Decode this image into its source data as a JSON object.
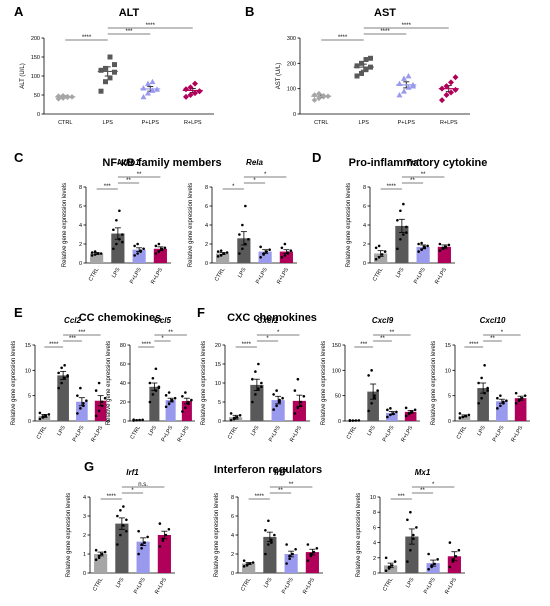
{
  "figure": {
    "group_colors": [
      "#a6a6a6",
      "#595959",
      "#9999ee",
      "#b0005a"
    ],
    "groups": [
      "CTRL",
      "LPS",
      "P+LPS",
      "R+LPS"
    ]
  },
  "headings": {
    "C": "NF-κB family members",
    "D": "Pro-inflammatory cytokine",
    "E": "CC chemokines",
    "F": "CXC chemokines",
    "G": "Interferon regulators"
  },
  "chart_data": [
    {
      "id": "A",
      "type": "scatter",
      "title": "ALT",
      "italic": false,
      "ylabel": "ALT (U/L)",
      "ylim": [
        0,
        200
      ],
      "yticks": [
        0,
        50,
        100,
        150,
        200
      ],
      "categories": [
        "CTRL",
        "LPS",
        "P+LPS",
        "R+LPS"
      ],
      "means": [
        45,
        112,
        66,
        62
      ],
      "sems": [
        3,
        12,
        6,
        5
      ],
      "points": [
        [
          40,
          42,
          44,
          45,
          47,
          48,
          46
        ],
        [
          60,
          85,
          95,
          110,
          115,
          120,
          150,
          130
        ],
        [
          45,
          55,
          62,
          65,
          68,
          80,
          85
        ],
        [
          45,
          50,
          55,
          60,
          65,
          70,
          80,
          60
        ]
      ],
      "sig": [
        {
          "from": 0,
          "to": 1,
          "label": "****"
        },
        {
          "from": 1,
          "to": 2,
          "label": "***"
        },
        {
          "from": 1,
          "to": 3,
          "label": "****"
        }
      ]
    },
    {
      "id": "B",
      "type": "scatter",
      "title": "AST",
      "italic": false,
      "ylabel": "AST (U/L)",
      "ylim": [
        0,
        300
      ],
      "yticks": [
        0,
        100,
        200,
        300
      ],
      "categories": [
        "CTRL",
        "LPS",
        "P+LPS",
        "R+LPS"
      ],
      "means": [
        70,
        185,
        115,
        100
      ],
      "sems": [
        5,
        12,
        12,
        12
      ],
      "points": [
        [
          55,
          62,
          68,
          70,
          75,
          80,
          72
        ],
        [
          150,
          160,
          175,
          185,
          190,
          200,
          215,
          220
        ],
        [
          75,
          90,
          105,
          115,
          120,
          140,
          150,
          110
        ],
        [
          55,
          75,
          85,
          95,
          100,
          110,
          125,
          145
        ]
      ],
      "sig": [
        {
          "from": 0,
          "to": 1,
          "label": "****"
        },
        {
          "from": 1,
          "to": 2,
          "label": "****"
        },
        {
          "from": 1,
          "to": 3,
          "label": "****"
        }
      ]
    },
    {
      "id": "Nfkb1",
      "type": "bar",
      "title": "Nfkb1",
      "italic": true,
      "ylabel": "Relative gene expression levels",
      "ylim": [
        0,
        8
      ],
      "yticks": [
        0,
        2,
        4,
        6,
        8
      ],
      "categories": [
        "CTRL",
        "LPS",
        "P+LPS",
        "R+LPS"
      ],
      "means": [
        1.0,
        3.1,
        1.4,
        1.5
      ],
      "sems": [
        0.1,
        0.6,
        0.2,
        0.2
      ],
      "points": [
        [
          0.8,
          0.9,
          1.0,
          1.0,
          1.1,
          1.2
        ],
        [
          1.5,
          2.0,
          2.5,
          3.0,
          3.5,
          4.5,
          5.5,
          2.2
        ],
        [
          0.8,
          1.0,
          1.2,
          1.5,
          1.8,
          2.0,
          1.3
        ],
        [
          1.0,
          1.2,
          1.4,
          1.6,
          1.8,
          2.0,
          1.5
        ]
      ],
      "sig": [
        {
          "from": 0,
          "to": 1,
          "label": "***"
        },
        {
          "from": 1,
          "to": 2,
          "label": "**"
        },
        {
          "from": 1,
          "to": 3,
          "label": "**"
        }
      ]
    },
    {
      "id": "Rela",
      "type": "bar",
      "title": "Rela",
      "italic": true,
      "ylabel": "Relative gene expression levels",
      "ylim": [
        0,
        8
      ],
      "yticks": [
        0,
        2,
        4,
        6,
        8
      ],
      "categories": [
        "CTRL",
        "LPS",
        "P+LPS",
        "R+LPS"
      ],
      "means": [
        1.0,
        2.6,
        1.2,
        1.2
      ],
      "sems": [
        0.1,
        0.7,
        0.2,
        0.2
      ],
      "points": [
        [
          0.7,
          0.8,
          1.0,
          1.1,
          1.2,
          1.3
        ],
        [
          1.0,
          1.5,
          2.0,
          2.5,
          3.0,
          4.0,
          6.0
        ],
        [
          0.6,
          0.9,
          1.2,
          1.4,
          1.7,
          1.0
        ],
        [
          0.6,
          0.8,
          1.0,
          1.3,
          1.6,
          2.0,
          1.1
        ]
      ],
      "sig": [
        {
          "from": 0,
          "to": 1,
          "label": "*"
        },
        {
          "from": 1,
          "to": 2,
          "label": "*"
        },
        {
          "from": 1,
          "to": 3,
          "label": "*"
        }
      ]
    },
    {
      "id": "Tnf",
      "type": "bar",
      "title": "Tnf",
      "italic": true,
      "ylabel": "Relative gene expression levels",
      "ylim": [
        0,
        8
      ],
      "yticks": [
        0,
        2,
        4,
        6,
        8
      ],
      "categories": [
        "CTRL",
        "LPS",
        "P+LPS",
        "R+LPS"
      ],
      "means": [
        1.0,
        3.9,
        1.7,
        1.7
      ],
      "sems": [
        0.3,
        0.7,
        0.2,
        0.2
      ],
      "points": [
        [
          0.4,
          0.6,
          0.9,
          1.2,
          1.6,
          1.8
        ],
        [
          1.5,
          2.5,
          3.0,
          3.8,
          4.5,
          5.5,
          6.2,
          3.2
        ],
        [
          1.2,
          1.4,
          1.6,
          1.8,
          2.0,
          2.1,
          1.7
        ],
        [
          1.3,
          1.5,
          1.7,
          1.9,
          2.0,
          1.6
        ]
      ],
      "sig": [
        {
          "from": 0,
          "to": 1,
          "label": "****"
        },
        {
          "from": 1,
          "to": 2,
          "label": "**"
        },
        {
          "from": 1,
          "to": 3,
          "label": "**"
        }
      ]
    },
    {
      "id": "Ccl2",
      "type": "bar",
      "title": "Ccl2",
      "italic": true,
      "ylabel": "Relative gene expression levels",
      "ylim": [
        0,
        15
      ],
      "yticks": [
        0,
        5,
        10,
        15
      ],
      "categories": [
        "CTRL",
        "LPS",
        "P+LPS",
        "R+LPS"
      ],
      "means": [
        1.0,
        9.0,
        3.8,
        4.0
      ],
      "sems": [
        0.3,
        0.8,
        0.8,
        1.0
      ],
      "points": [
        [
          0.4,
          0.7,
          1.0,
          1.3,
          1.6,
          0.9
        ],
        [
          6.5,
          7.5,
          8.5,
          9.0,
          9.5,
          10.5,
          11.0,
          8.8
        ],
        [
          1.5,
          2.5,
          3.0,
          4.0,
          5.0,
          6.5,
          3.5
        ],
        [
          1.0,
          2.0,
          3.0,
          4.5,
          6.0,
          7.5,
          3.8
        ]
      ],
      "sig": [
        {
          "from": 0,
          "to": 1,
          "label": "****"
        },
        {
          "from": 1,
          "to": 2,
          "label": "***"
        },
        {
          "from": 1,
          "to": 3,
          "label": "***"
        }
      ]
    },
    {
      "id": "Ccl5",
      "type": "bar",
      "title": "Ccl5",
      "italic": true,
      "ylabel": "Relative gene expression levels",
      "ylim": [
        0,
        80
      ],
      "yticks": [
        0,
        20,
        40,
        60,
        80
      ],
      "categories": [
        "CTRL",
        "LPS",
        "P+LPS",
        "R+LPS"
      ],
      "means": [
        1.0,
        36,
        22,
        21
      ],
      "sems": [
        0.2,
        4,
        2,
        3
      ],
      "points": [
        [
          0.5,
          0.8,
          1.0,
          1.2,
          1.4
        ],
        [
          20,
          28,
          32,
          36,
          40,
          45,
          55,
          35
        ],
        [
          15,
          18,
          21,
          24,
          27,
          30,
          22
        ],
        [
          10,
          14,
          18,
          22,
          26,
          30,
          20
        ]
      ],
      "sig": [
        {
          "from": 0,
          "to": 1,
          "label": "****"
        },
        {
          "from": 1,
          "to": 2,
          "label": "*"
        },
        {
          "from": 1,
          "to": 3,
          "label": "**"
        }
      ]
    },
    {
      "id": "Cxcl1",
      "type": "bar",
      "title": "Cxcl1",
      "italic": true,
      "ylabel": "Relative gene expression levels",
      "ylim": [
        0,
        20
      ],
      "yticks": [
        0,
        5,
        10,
        15,
        20
      ],
      "categories": [
        "CTRL",
        "LPS",
        "P+LPS",
        "R+LPS"
      ],
      "means": [
        1.0,
        9.5,
        5.5,
        5.3
      ],
      "sems": [
        0.5,
        1.5,
        1.0,
        1.5
      ],
      "points": [
        [
          0.2,
          0.5,
          1.0,
          1.5,
          2.0,
          0.8
        ],
        [
          5.0,
          7.0,
          8.5,
          10.0,
          11.0,
          13.0,
          15.0,
          9.0
        ],
        [
          3.0,
          4.0,
          5.0,
          6.0,
          7.0,
          8.0,
          5.5
        ],
        [
          2.0,
          3.5,
          5.0,
          6.5,
          8.0,
          11.0,
          4.0
        ]
      ],
      "sig": [
        {
          "from": 0,
          "to": 1,
          "label": "****"
        },
        {
          "from": 1,
          "to": 2,
          "label": "*"
        },
        {
          "from": 1,
          "to": 3,
          "label": "*"
        }
      ]
    },
    {
      "id": "Cxcl9",
      "type": "bar",
      "title": "Cxcl9",
      "italic": true,
      "ylabel": "Relative gene expression levels",
      "ylim": [
        0,
        150
      ],
      "yticks": [
        0,
        50,
        100,
        150
      ],
      "categories": [
        "CTRL",
        "LPS",
        "P+LPS",
        "R+LPS"
      ],
      "means": [
        1.0,
        58,
        16,
        18
      ],
      "sems": [
        0.2,
        15,
        3,
        3
      ],
      "points": [
        [
          0.5,
          0.8,
          1.0,
          1.2,
          1.4
        ],
        [
          20,
          35,
          45,
          60,
          90,
          100,
          50
        ],
        [
          8,
          12,
          15,
          18,
          22,
          25,
          14
        ],
        [
          10,
          14,
          18,
          22,
          26,
          16
        ]
      ],
      "sig": [
        {
          "from": 0,
          "to": 1,
          "label": "***"
        },
        {
          "from": 1,
          "to": 2,
          "label": "**"
        },
        {
          "from": 1,
          "to": 3,
          "label": "**"
        }
      ]
    },
    {
      "id": "Cxcl10",
      "type": "bar",
      "title": "Cxcl10",
      "italic": true,
      "ylabel": "Relative gene expression levels",
      "ylim": [
        0,
        15
      ],
      "yticks": [
        0,
        5,
        10,
        15
      ],
      "categories": [
        "CTRL",
        "LPS",
        "P+LPS",
        "R+LPS"
      ],
      "means": [
        1.0,
        6.5,
        3.9,
        4.5
      ],
      "sems": [
        0.2,
        1.0,
        0.4,
        0.4
      ],
      "points": [
        [
          0.6,
          0.8,
          1.0,
          1.2,
          1.5
        ],
        [
          3.5,
          4.5,
          5.5,
          6.5,
          7.5,
          8.5,
          11.0,
          6.0
        ],
        [
          2.5,
          3.0,
          3.5,
          4.0,
          4.5,
          5.0,
          3.8
        ],
        [
          3.5,
          4.0,
          4.5,
          5.0,
          5.5,
          4.2
        ]
      ],
      "sig": [
        {
          "from": 0,
          "to": 1,
          "label": "****"
        },
        {
          "from": 1,
          "to": 2,
          "label": "**"
        },
        {
          "from": 1,
          "to": 3,
          "label": "*"
        }
      ]
    },
    {
      "id": "Irf1",
      "type": "bar",
      "title": "Irf1",
      "italic": true,
      "ylabel": "Relative gene expression levels",
      "ylim": [
        0,
        4
      ],
      "yticks": [
        0,
        1,
        2,
        3,
        4
      ],
      "categories": [
        "CTRL",
        "LPS",
        "P+LPS",
        "R+LPS"
      ],
      "means": [
        1.0,
        2.6,
        1.65,
        2.0
      ],
      "sems": [
        0.1,
        0.3,
        0.2,
        0.2
      ],
      "points": [
        [
          0.7,
          0.8,
          1.0,
          1.1,
          1.2,
          0.9
        ],
        [
          1.5,
          2.0,
          2.5,
          2.8,
          3.0,
          3.3,
          3.5,
          2.2
        ],
        [
          1.0,
          1.3,
          1.6,
          1.9,
          2.2,
          1.5
        ],
        [
          1.4,
          1.7,
          2.0,
          2.3,
          2.6,
          1.8
        ]
      ],
      "sig": [
        {
          "from": 0,
          "to": 1,
          "label": "****"
        },
        {
          "from": 1,
          "to": 2,
          "label": "*"
        },
        {
          "from": 1,
          "to": 3,
          "label": "n.s."
        }
      ]
    },
    {
      "id": "Irf7",
      "type": "bar",
      "title": "Irf7",
      "italic": true,
      "ylabel": "Relative gene expression levels",
      "ylim": [
        0,
        8
      ],
      "yticks": [
        0,
        2,
        4,
        6,
        8
      ],
      "categories": [
        "CTRL",
        "LPS",
        "P+LPS",
        "R+LPS"
      ],
      "means": [
        1.0,
        3.8,
        2.0,
        2.2
      ],
      "sems": [
        0.1,
        0.5,
        0.3,
        0.3
      ],
      "points": [
        [
          0.7,
          0.9,
          1.0,
          1.1,
          1.3,
          0.8
        ],
        [
          2.0,
          3.0,
          3.5,
          4.0,
          4.5,
          5.5,
          3.2
        ],
        [
          1.0,
          1.5,
          2.0,
          2.5,
          3.0,
          1.8
        ],
        [
          1.3,
          1.8,
          2.2,
          2.6,
          3.0,
          2.0
        ]
      ],
      "sig": [
        {
          "from": 0,
          "to": 1,
          "label": "****"
        },
        {
          "from": 1,
          "to": 2,
          "label": "**"
        },
        {
          "from": 1,
          "to": 3,
          "label": "**"
        }
      ]
    },
    {
      "id": "Mx1",
      "type": "bar",
      "title": "Mx1",
      "italic": true,
      "ylabel": "Relative gene expression levels",
      "ylim": [
        0,
        10
      ],
      "yticks": [
        0,
        2,
        4,
        6,
        8,
        10
      ],
      "categories": [
        "CTRL",
        "LPS",
        "P+LPS",
        "R+LPS"
      ],
      "means": [
        1.0,
        4.8,
        1.3,
        2.2
      ],
      "sems": [
        0.3,
        1.0,
        0.4,
        0.6
      ],
      "points": [
        [
          0.3,
          0.6,
          1.0,
          1.5,
          2.0,
          0.8
        ],
        [
          1.5,
          3.0,
          4.5,
          6.0,
          7.0,
          8.0,
          5.0
        ],
        [
          0.5,
          0.8,
          1.2,
          1.8,
          2.5,
          1.0
        ],
        [
          0.8,
          1.5,
          2.2,
          3.0,
          4.0,
          1.8
        ]
      ],
      "sig": [
        {
          "from": 0,
          "to": 1,
          "label": "***"
        },
        {
          "from": 1,
          "to": 2,
          "label": "**"
        },
        {
          "from": 1,
          "to": 3,
          "label": "*"
        }
      ]
    }
  ]
}
